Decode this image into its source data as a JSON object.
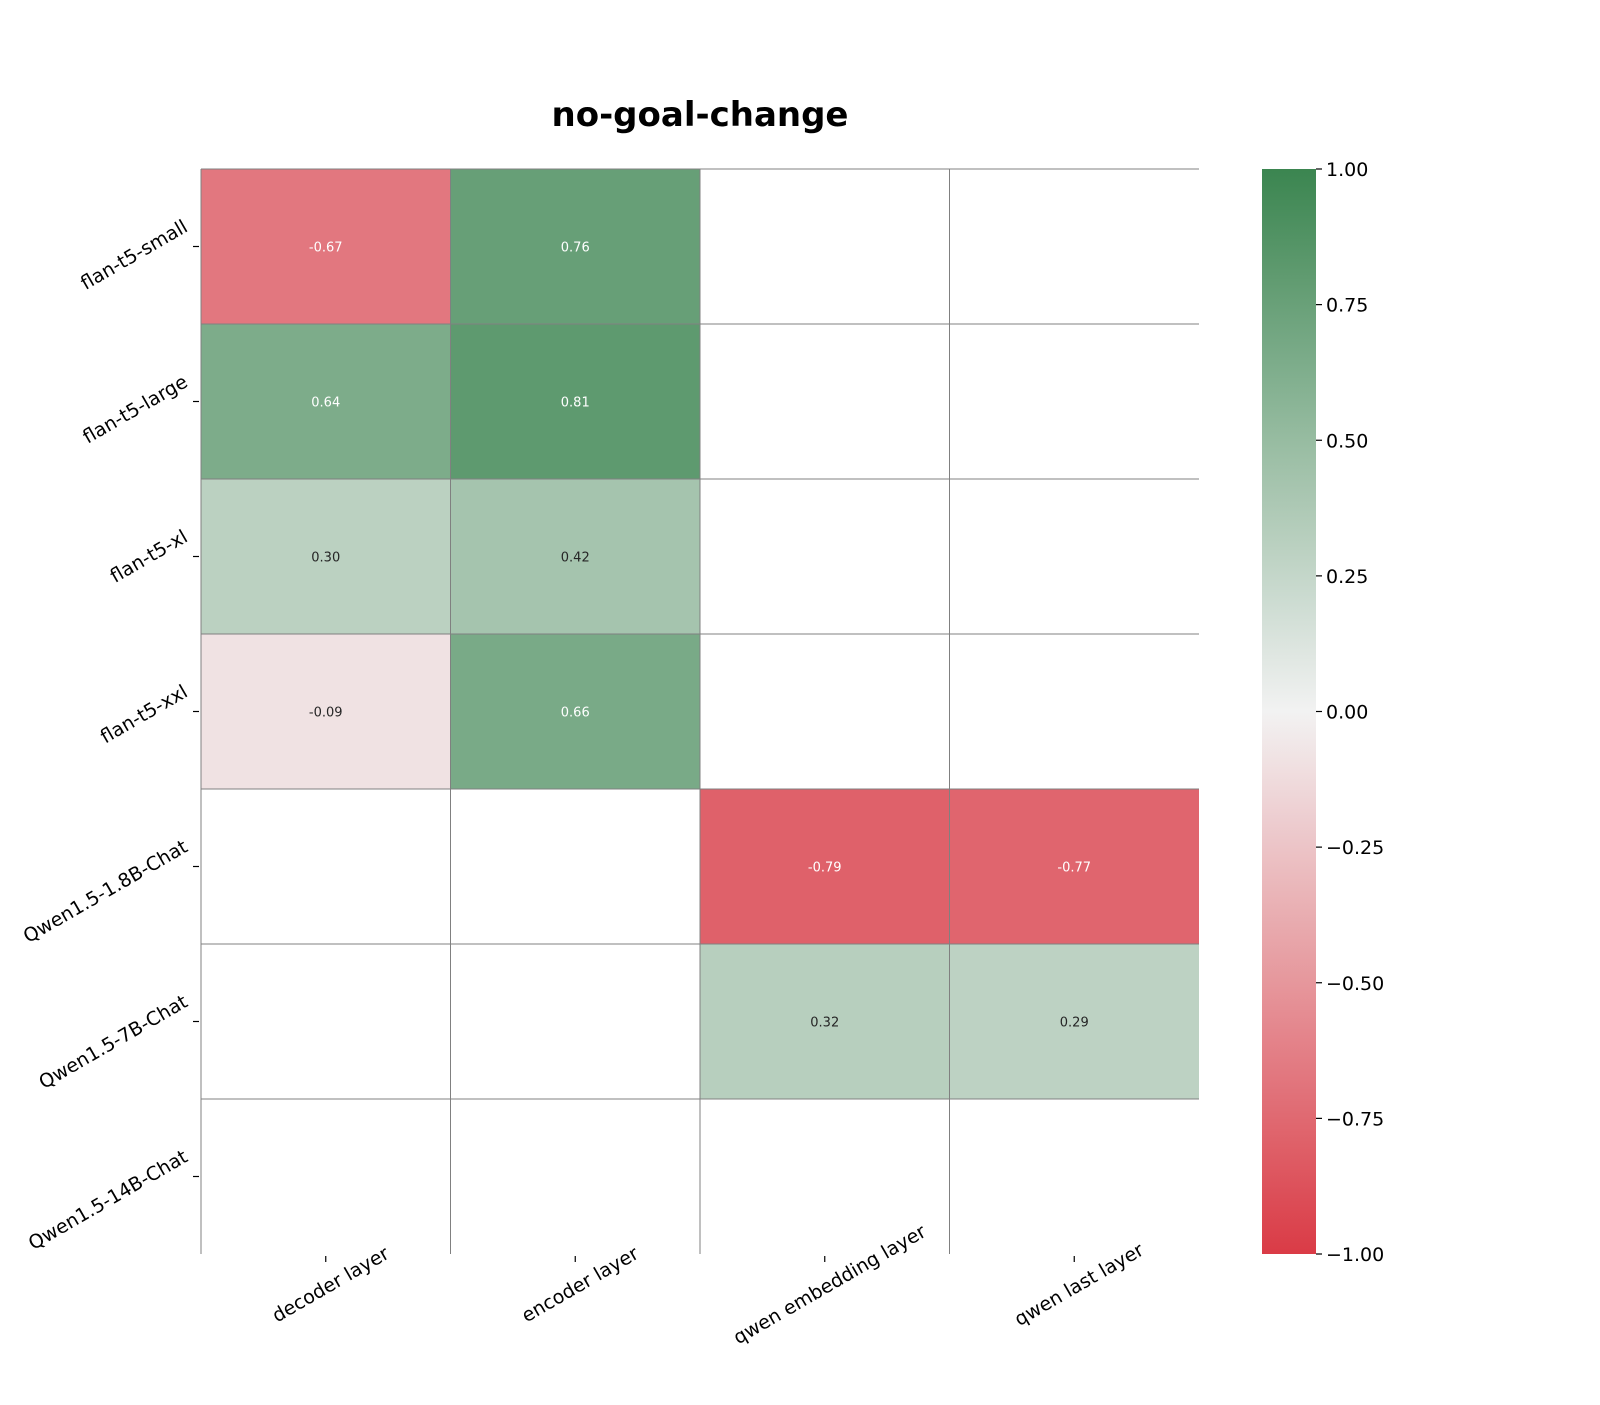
{
  "chart_data": {
    "type": "heatmap",
    "title": "no-goal-change",
    "xlabel": "",
    "ylabel": "",
    "x_categories": [
      "decoder layer",
      "encoder layer",
      "qwen embedding layer",
      "qwen last layer"
    ],
    "y_categories": [
      "flan-t5-small",
      "flan-t5-large",
      "flan-t5-xl",
      "flan-t5-xxl",
      "Qwen1.5-1.8B-Chat",
      "Qwen1.5-7B-Chat",
      "Qwen1.5-14B-Chat"
    ],
    "values": [
      [
        -0.67,
        0.76,
        null,
        null
      ],
      [
        0.64,
        0.81,
        null,
        null
      ],
      [
        0.3,
        0.42,
        null,
        null
      ],
      [
        -0.09,
        0.66,
        null,
        null
      ],
      [
        null,
        null,
        -0.79,
        -0.77
      ],
      [
        null,
        null,
        0.32,
        0.29
      ],
      [
        null,
        null,
        null,
        null
      ]
    ],
    "value_labels": [
      [
        "-0.67",
        "0.76",
        "",
        ""
      ],
      [
        "0.64",
        "0.81",
        "",
        ""
      ],
      [
        "0.30",
        "0.42",
        "",
        ""
      ],
      [
        "-0.09",
        "0.66",
        "",
        ""
      ],
      [
        "",
        "",
        "-0.79",
        "-0.77"
      ],
      [
        "",
        "",
        "0.32",
        "0.29"
      ],
      [
        "",
        "",
        "",
        ""
      ]
    ],
    "vmin": -1.0,
    "vmax": 1.0,
    "colormap": {
      "negative": "#da3b46",
      "center": "#f2f2f2",
      "positive": "#3b8550"
    },
    "colorbar": {
      "ticks": [
        1.0,
        0.75,
        0.5,
        0.25,
        0.0,
        -0.25,
        -0.5,
        -0.75,
        -1.0
      ],
      "tick_labels": [
        "1.00",
        "0.75",
        "0.50",
        "0.25",
        "0.00",
        "−0.25",
        "−0.50",
        "−0.75",
        "−1.00"
      ],
      "position": "right"
    },
    "grid": true,
    "grid_color": "#808080"
  }
}
